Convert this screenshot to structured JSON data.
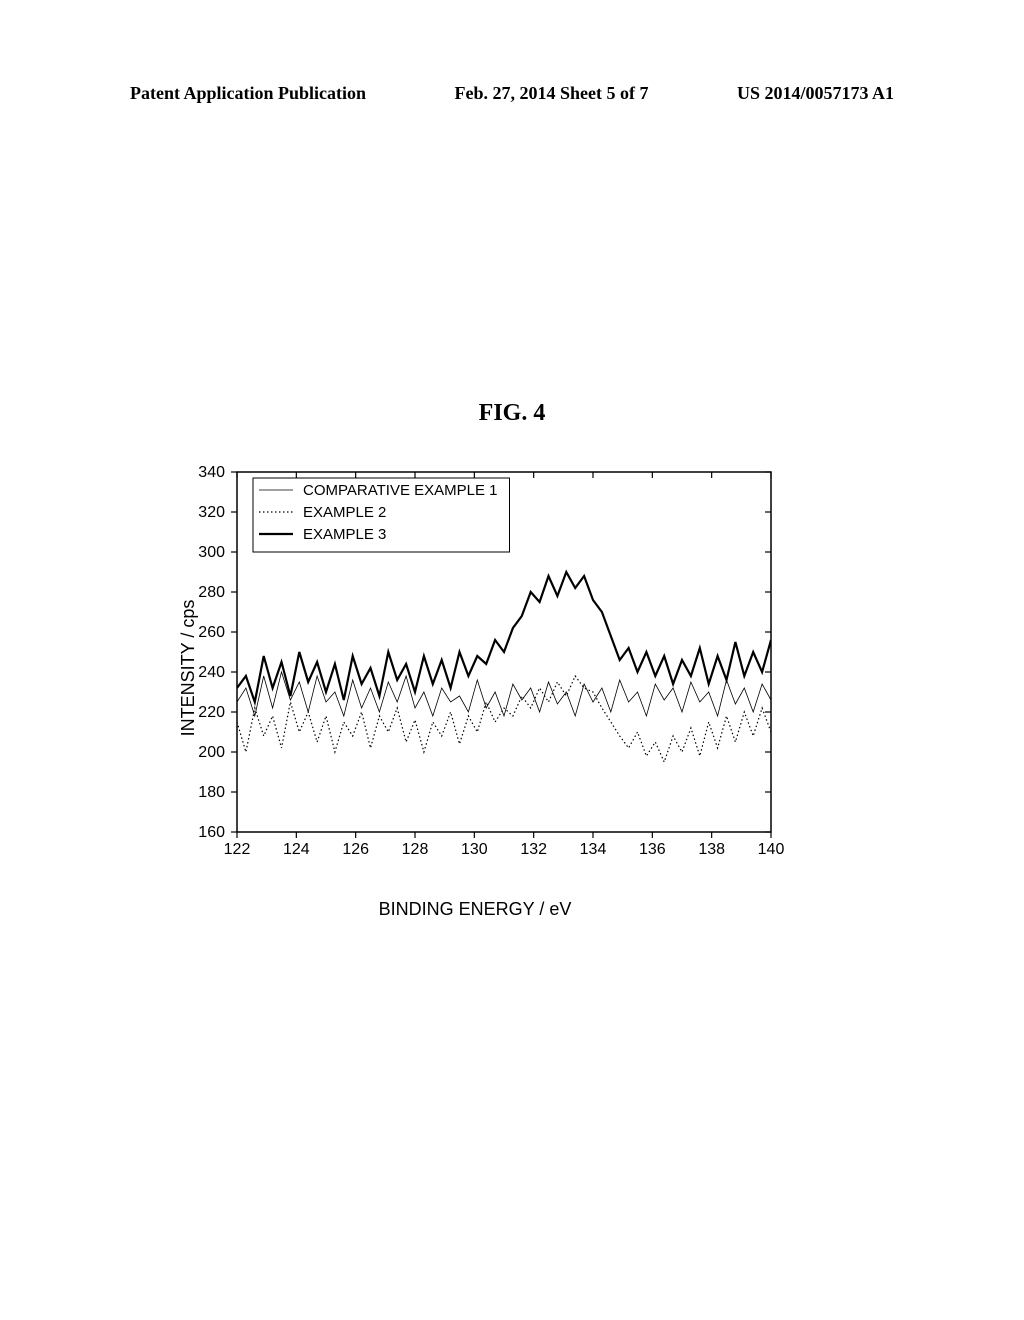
{
  "header": {
    "left": "Patent Application Publication",
    "mid": "Feb. 27, 2014   Sheet 5 of 7",
    "right": "US 2014/0057173 A1"
  },
  "figure_title": "FIG.  4",
  "chart": {
    "type": "line",
    "xlabel": "BINDING ENERGY / eV",
    "ylabel": "INTENSITY / cps",
    "xlim": [
      122,
      140
    ],
    "ylim": [
      160,
      340
    ],
    "xtick_step": 2,
    "ytick_step": 20,
    "label_fontsize": 18,
    "tick_fontsize": 16,
    "background_color": "#ffffff",
    "axis_color": "#000000",
    "legend": {
      "position": "top-left",
      "items": [
        {
          "label": "COMPARATIVE EXAMPLE 1",
          "style": "thin",
          "color": "#000000"
        },
        {
          "label": "EXAMPLE 2",
          "style": "dotted",
          "color": "#000000"
        },
        {
          "label": "EXAMPLE 3",
          "style": "thick",
          "color": "#000000"
        }
      ]
    },
    "series": [
      {
        "name": "COMPARATIVE EXAMPLE 1",
        "style": "thin",
        "stroke_width": 0.8,
        "color": "#000000",
        "x": [
          122,
          122.3,
          122.6,
          122.9,
          123.2,
          123.5,
          123.8,
          124.1,
          124.4,
          124.7,
          125,
          125.3,
          125.6,
          125.9,
          126.2,
          126.5,
          126.8,
          127.1,
          127.4,
          127.7,
          128,
          128.3,
          128.6,
          128.9,
          129.2,
          129.5,
          129.8,
          130.1,
          130.4,
          130.7,
          131,
          131.3,
          131.6,
          131.9,
          132.2,
          132.5,
          132.8,
          133.1,
          133.4,
          133.7,
          134,
          134.3,
          134.6,
          134.9,
          135.2,
          135.5,
          135.8,
          136.1,
          136.4,
          136.7,
          137,
          137.3,
          137.6,
          137.9,
          138.2,
          138.5,
          138.8,
          139.1,
          139.4,
          139.7,
          140
        ],
        "y": [
          225,
          232,
          218,
          238,
          222,
          240,
          226,
          235,
          220,
          238,
          225,
          230,
          218,
          236,
          222,
          232,
          220,
          235,
          225,
          238,
          222,
          230,
          218,
          232,
          225,
          228,
          220,
          236,
          222,
          230,
          218,
          234,
          226,
          232,
          220,
          235,
          224,
          230,
          218,
          234,
          225,
          232,
          220,
          236,
          225,
          230,
          218,
          234,
          226,
          232,
          220,
          235,
          225,
          230,
          218,
          236,
          224,
          232,
          220,
          234,
          226
        ]
      },
      {
        "name": "EXAMPLE 2",
        "style": "dotted",
        "stroke_width": 1.2,
        "dash": "1.5,2.5",
        "color": "#000000",
        "x": [
          122,
          122.3,
          122.6,
          122.9,
          123.2,
          123.5,
          123.8,
          124.1,
          124.4,
          124.7,
          125,
          125.3,
          125.6,
          125.9,
          126.2,
          126.5,
          126.8,
          127.1,
          127.4,
          127.7,
          128,
          128.3,
          128.6,
          128.9,
          129.2,
          129.5,
          129.8,
          130.1,
          130.4,
          130.7,
          131,
          131.3,
          131.6,
          131.9,
          132.2,
          132.5,
          132.8,
          133.1,
          133.4,
          133.7,
          134,
          134.3,
          134.6,
          134.9,
          135.2,
          135.5,
          135.8,
          136.1,
          136.4,
          136.7,
          137,
          137.3,
          137.6,
          137.9,
          138.2,
          138.5,
          138.8,
          139.1,
          139.4,
          139.7,
          140
        ],
        "y": [
          215,
          200,
          222,
          208,
          218,
          202,
          225,
          210,
          220,
          205,
          218,
          200,
          215,
          208,
          220,
          202,
          218,
          210,
          222,
          205,
          216,
          200,
          215,
          208,
          220,
          204,
          218,
          210,
          225,
          215,
          222,
          218,
          228,
          222,
          232,
          225,
          235,
          228,
          238,
          232,
          230,
          222,
          215,
          208,
          202,
          210,
          198,
          205,
          195,
          208,
          200,
          212,
          198,
          215,
          202,
          218,
          205,
          220,
          208,
          222,
          210
        ]
      },
      {
        "name": "EXAMPLE 3",
        "style": "thick",
        "stroke_width": 2.2,
        "color": "#000000",
        "x": [
          122,
          122.3,
          122.6,
          122.9,
          123.2,
          123.5,
          123.8,
          124.1,
          124.4,
          124.7,
          125,
          125.3,
          125.6,
          125.9,
          126.2,
          126.5,
          126.8,
          127.1,
          127.4,
          127.7,
          128,
          128.3,
          128.6,
          128.9,
          129.2,
          129.5,
          129.8,
          130.1,
          130.4,
          130.7,
          131,
          131.3,
          131.6,
          131.9,
          132.2,
          132.5,
          132.8,
          133.1,
          133.4,
          133.7,
          134,
          134.3,
          134.6,
          134.9,
          135.2,
          135.5,
          135.8,
          136.1,
          136.4,
          136.7,
          137,
          137.3,
          137.6,
          137.9,
          138.2,
          138.5,
          138.8,
          139.1,
          139.4,
          139.7,
          140
        ],
        "y": [
          232,
          238,
          225,
          248,
          232,
          245,
          228,
          250,
          235,
          245,
          230,
          244,
          226,
          248,
          234,
          242,
          228,
          250,
          236,
          244,
          230,
          248,
          234,
          246,
          232,
          250,
          238,
          248,
          244,
          256,
          250,
          262,
          268,
          280,
          275,
          288,
          278,
          290,
          282,
          288,
          276,
          270,
          258,
          246,
          252,
          240,
          250,
          238,
          248,
          234,
          246,
          238,
          252,
          234,
          248,
          236,
          255,
          238,
          250,
          240,
          256
        ]
      }
    ]
  }
}
